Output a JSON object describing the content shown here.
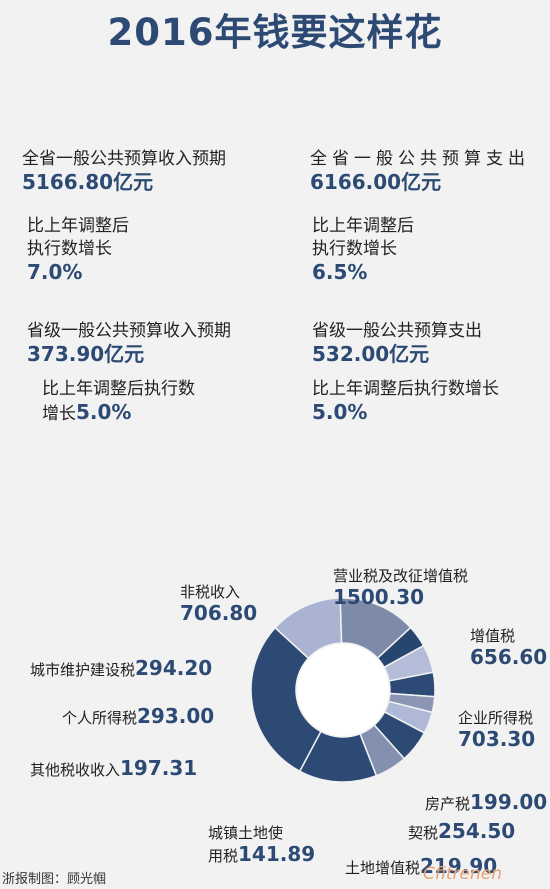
{
  "title": "2016年钱要这样花",
  "stats": {
    "prov_income_label": "全省一般公共预算收入预期",
    "prov_income_value": "5166.80亿元",
    "prov_income_growth_l1": "比上年调整后",
    "prov_income_growth_l2": "执行数增长",
    "prov_income_growth_value": "7.0%",
    "prov_spend_label": "全省一般公共预算支出",
    "prov_spend_value": "6166.00亿元",
    "prov_spend_growth_l1": "比上年调整后",
    "prov_spend_growth_l2": "执行数增长",
    "prov_spend_growth_value": "6.5%",
    "level_income_label": "省级一般公共预算收入预期",
    "level_income_value": "373.90亿元",
    "level_income_growth_l1": "比上年调整后执行数",
    "level_income_growth_l2": "增长",
    "level_income_growth_value": "5.0%",
    "level_spend_label": "省级一般公共预算支出",
    "level_spend_value": "532.00亿元",
    "level_spend_growth_l1": "比上年调整后执行数增长",
    "level_spend_growth_value": "5.0%"
  },
  "chart_data": {
    "type": "pie",
    "categories": [
      "营业税及改征增值税",
      "增值税",
      "企业所得税",
      "房产税",
      "契税",
      "土地增值税",
      "城镇土地使用税",
      "其他税收收入",
      "个人所得税",
      "城市维护建设税",
      "非税收入"
    ],
    "values": [
      1500.3,
      656.6,
      703.3,
      199.0,
      254.5,
      219.9,
      141.89,
      197.31,
      293.0,
      294.2,
      706.8
    ],
    "label_text": [
      [
        "营业税及改征增值税",
        ""
      ],
      [
        "增值税",
        ""
      ],
      [
        "企业所得税",
        ""
      ],
      [
        "房产税",
        ""
      ],
      [
        "契税",
        ""
      ],
      [
        "土地增值税",
        ""
      ],
      [
        "城镇土地使",
        "用税"
      ],
      [
        "其他税收收入",
        ""
      ],
      [
        "个人所得税",
        ""
      ],
      [
        "城市维护建设税",
        ""
      ],
      [
        "非税收入",
        ""
      ]
    ],
    "value_text": [
      "1500.30",
      "656.60",
      "703.30",
      "199.00",
      "254.50",
      "219.90",
      "141.89",
      "197.31",
      "293.00",
      "294.20",
      "706.80"
    ],
    "colors": [
      "#2c4a74",
      "#aab3d2",
      "#7d8ba8",
      "#26466f",
      "#b5bcd9",
      "#2d4a76",
      "#8a96b4",
      "#b0b8d8",
      "#2c4a74",
      "#8390b0",
      "#2c4a74"
    ]
  },
  "credit": "浙报制图：顾光帼",
  "watermark": "Cfitrenen"
}
